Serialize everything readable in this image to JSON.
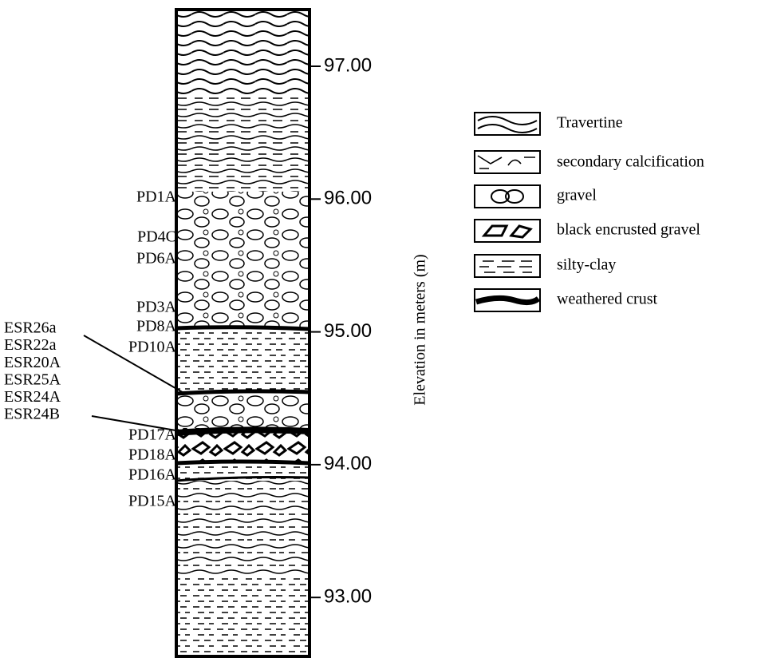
{
  "column": {
    "elevation_label": "Elevation in meters (m)",
    "elevation_ticks": [
      {
        "value": 97,
        "label": "97.00"
      },
      {
        "value": 96,
        "label": "96.00"
      },
      {
        "value": 95,
        "label": "95.00"
      },
      {
        "value": 94,
        "label": "94.00"
      },
      {
        "value": 93,
        "label": "93.00"
      }
    ],
    "samples": [
      "PD1A",
      "PD4C",
      "PD6A",
      "PD3A",
      "PD8A",
      "PD10A",
      "PD17A",
      "PD18A",
      "PD16A",
      "PD15A"
    ],
    "esr_samples": [
      "ESR26a",
      "ESR22a",
      "ESR20A",
      "ESR25A",
      "ESR24A",
      "ESR24B"
    ]
  },
  "legend": {
    "items": [
      "Travertine",
      "secondary calcification",
      "gravel",
      "black encrusted gravel",
      "silty-clay",
      "weathered crust"
    ]
  }
}
